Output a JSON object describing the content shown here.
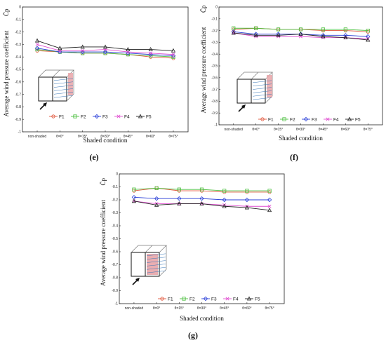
{
  "chart_data": [
    {
      "type": "line",
      "panel_label": "(e)",
      "xlabel": "Shaded condition",
      "ylabel": "Average wind pressure coefficient",
      "ylabel_symbol": "C̄p",
      "ylim": [
        -1,
        0
      ],
      "yticks": [
        "0",
        "-0.1",
        "-0.2",
        "-0.3",
        "-0.4",
        "-0.5",
        "-0.6",
        "-0.7",
        "-0.8",
        "-0.9",
        "-1"
      ],
      "categories": [
        "non-shaded",
        "θ=0°",
        "θ=15°",
        "θ=30°",
        "θ=45°",
        "θ=60°",
        "θ=75°"
      ],
      "legend_position": "bottom-right",
      "series": [
        {
          "name": "F1",
          "color": "#e0553a",
          "marker": "circle",
          "values": [
            -0.35,
            -0.36,
            -0.37,
            -0.37,
            -0.38,
            -0.4,
            -0.41
          ]
        },
        {
          "name": "F2",
          "color": "#4cbf3f",
          "marker": "square",
          "values": [
            -0.34,
            -0.36,
            -0.37,
            -0.37,
            -0.38,
            -0.39,
            -0.4
          ]
        },
        {
          "name": "F3",
          "color": "#2a3fd8",
          "marker": "diamond",
          "values": [
            -0.33,
            -0.36,
            -0.36,
            -0.36,
            -0.37,
            -0.38,
            -0.39
          ]
        },
        {
          "name": "F4",
          "color": "#e04fd0",
          "marker": "x",
          "values": [
            -0.3,
            -0.35,
            -0.35,
            -0.34,
            -0.36,
            -0.37,
            -0.38
          ]
        },
        {
          "name": "F5",
          "color": "#222222",
          "marker": "triangle",
          "values": [
            -0.27,
            -0.33,
            -0.32,
            -0.32,
            -0.34,
            -0.34,
            -0.35
          ]
        }
      ]
    },
    {
      "type": "line",
      "panel_label": "(f)",
      "xlabel": "Shaded condition",
      "ylabel": "Average wind pressure coefficient",
      "ylabel_symbol": "C̄p",
      "ylim": [
        -1,
        0
      ],
      "yticks": [
        "0",
        "-0.1",
        "-0.2",
        "-0.3",
        "-0.4",
        "-0.5",
        "-0.6",
        "-0.7",
        "-0.8",
        "-0.9",
        "-1"
      ],
      "categories": [
        "non-shaded",
        "θ=0°",
        "θ=15°",
        "θ=30°",
        "θ=45°",
        "θ=60°",
        "θ=75°"
      ],
      "legend_position": "bottom-right",
      "series": [
        {
          "name": "F1",
          "color": "#e0553a",
          "marker": "circle",
          "values": [
            -0.19,
            -0.18,
            -0.19,
            -0.19,
            -0.2,
            -0.2,
            -0.21
          ]
        },
        {
          "name": "F2",
          "color": "#4cbf3f",
          "marker": "square",
          "values": [
            -0.18,
            -0.18,
            -0.19,
            -0.19,
            -0.19,
            -0.19,
            -0.2
          ]
        },
        {
          "name": "F3",
          "color": "#2a3fd8",
          "marker": "diamond",
          "values": [
            -0.21,
            -0.23,
            -0.23,
            -0.23,
            -0.24,
            -0.24,
            -0.25
          ]
        },
        {
          "name": "F4",
          "color": "#e04fd0",
          "marker": "x",
          "values": [
            -0.22,
            -0.25,
            -0.25,
            -0.25,
            -0.26,
            -0.26,
            -0.27
          ]
        },
        {
          "name": "F5",
          "color": "#222222",
          "marker": "triangle",
          "values": [
            -0.22,
            -0.24,
            -0.24,
            -0.23,
            -0.25,
            -0.26,
            -0.28
          ]
        }
      ]
    },
    {
      "type": "line",
      "panel_label": "(g)",
      "xlabel": "Shaded condition",
      "ylabel": "Average wind pressure coefficient",
      "ylabel_symbol": "C̄p",
      "ylim": [
        -1,
        0
      ],
      "yticks": [
        "0",
        "-0.1",
        "-0.2",
        "-0.3",
        "-0.4",
        "-0.5",
        "-0.6",
        "-0.7",
        "-0.8",
        "-0.9",
        "-1"
      ],
      "categories": [
        "non-shaded",
        "θ=0°",
        "θ=15°",
        "θ=30°",
        "θ=45°",
        "θ=60°",
        "θ=75°"
      ],
      "legend_position": "bottom-right",
      "series": [
        {
          "name": "F1",
          "color": "#e0553a",
          "marker": "circle",
          "values": [
            -0.13,
            -0.11,
            -0.13,
            -0.13,
            -0.14,
            -0.14,
            -0.14
          ]
        },
        {
          "name": "F2",
          "color": "#4cbf3f",
          "marker": "square",
          "values": [
            -0.12,
            -0.11,
            -0.12,
            -0.12,
            -0.13,
            -0.13,
            -0.13
          ]
        },
        {
          "name": "F3",
          "color": "#2a3fd8",
          "marker": "diamond",
          "values": [
            -0.18,
            -0.19,
            -0.19,
            -0.19,
            -0.2,
            -0.2,
            -0.2
          ]
        },
        {
          "name": "F4",
          "color": "#e04fd0",
          "marker": "x",
          "values": [
            -0.21,
            -0.23,
            -0.23,
            -0.23,
            -0.24,
            -0.25,
            -0.25
          ]
        },
        {
          "name": "F5",
          "color": "#222222",
          "marker": "triangle",
          "values": [
            -0.21,
            -0.24,
            -0.23,
            -0.23,
            -0.25,
            -0.26,
            -0.28
          ]
        }
      ]
    }
  ]
}
